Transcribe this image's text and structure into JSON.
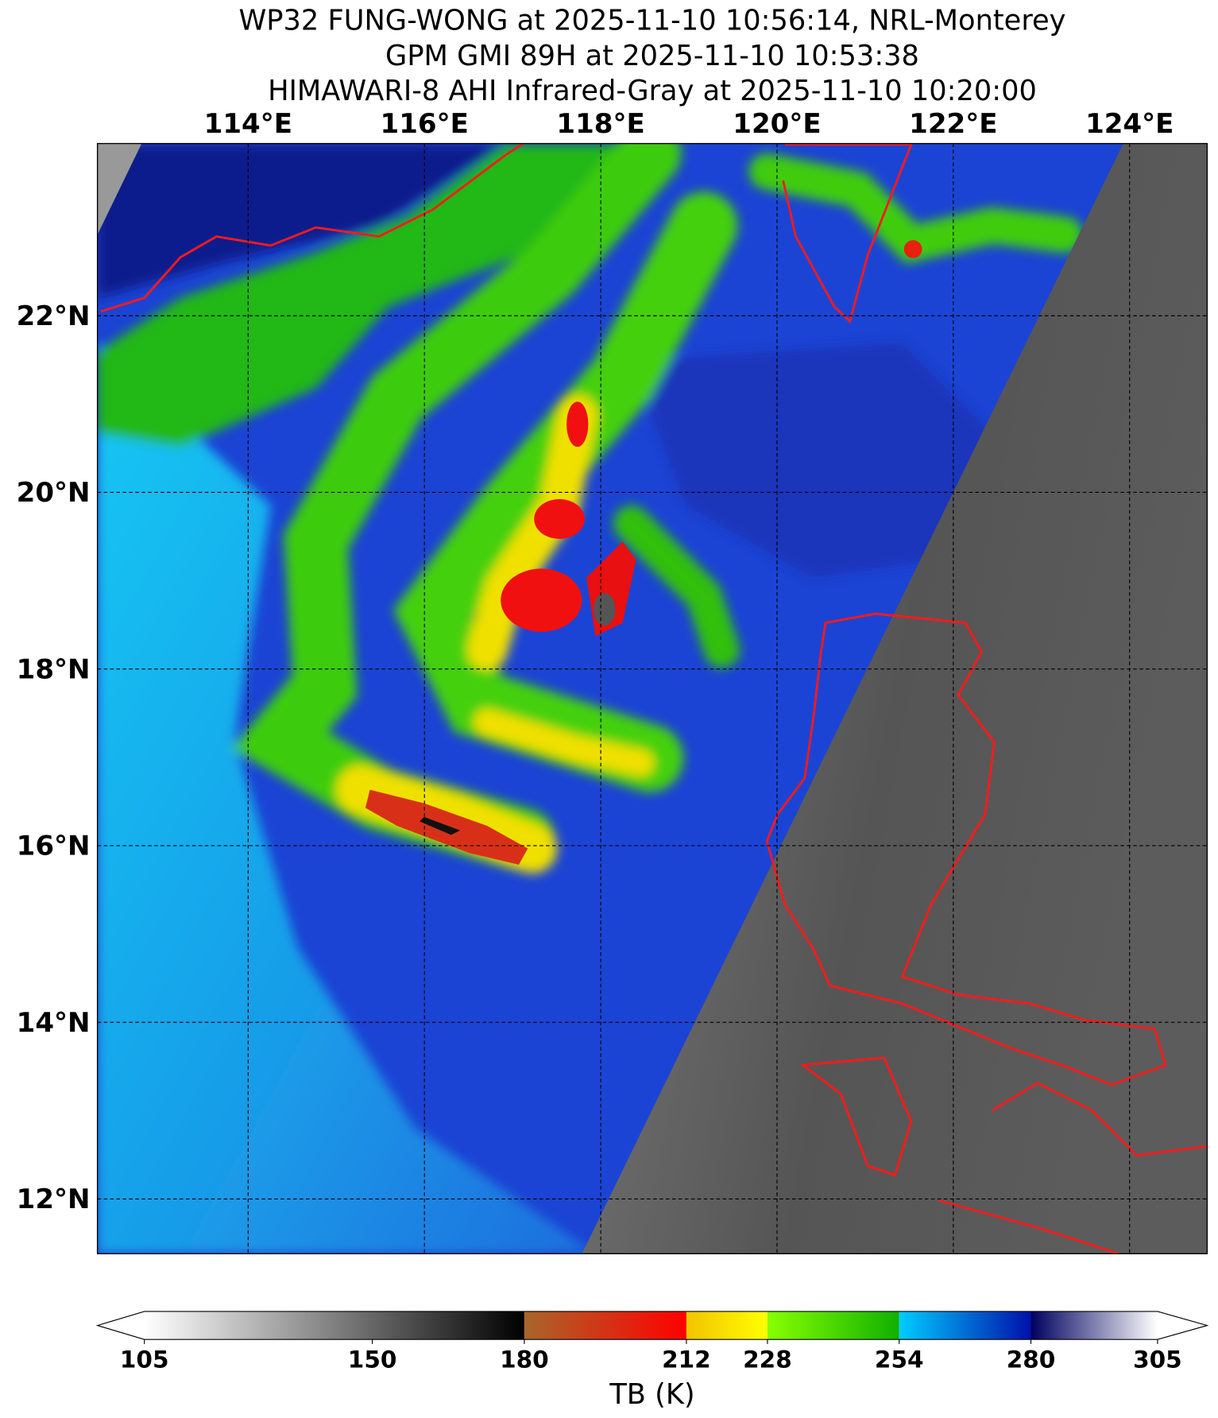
{
  "titles": [
    "WP32 FUNG-WONG at 2025-11-10 10:56:14, NRL-Monterey",
    "GPM GMI 89H at 2025-11-10 10:53:38",
    "HIMAWARI-8 AHI Infrared-Gray at 2025-11-10 10:20:00"
  ],
  "map": {
    "lon_extent": [
      112.29,
      124.88
    ],
    "lat_extent": [
      11.38,
      23.95
    ],
    "grid": true,
    "lon_ticks": [
      {
        "value": 114,
        "label": "114°E"
      },
      {
        "value": 116,
        "label": "116°E"
      },
      {
        "value": 118,
        "label": "118°E"
      },
      {
        "value": 120,
        "label": "120°E"
      },
      {
        "value": 122,
        "label": "122°E"
      },
      {
        "value": 124,
        "label": "124°E"
      }
    ],
    "lat_ticks": [
      {
        "value": 22,
        "label": "22°N"
      },
      {
        "value": 20,
        "label": "20°N"
      },
      {
        "value": 18,
        "label": "18°N"
      },
      {
        "value": 16,
        "label": "16°N"
      },
      {
        "value": 14,
        "label": "14°N"
      },
      {
        "value": 12,
        "label": "12°N"
      }
    ],
    "coastline_color": "#ff0000"
  },
  "colorbar": {
    "label": "TB (K)",
    "range": [
      105,
      305
    ],
    "extend": "both",
    "ticks": [
      105,
      150,
      180,
      212,
      228,
      254,
      280,
      305
    ],
    "tick_labels": [
      "105",
      "150",
      "180",
      "212",
      "228",
      "254",
      "280",
      "305"
    ],
    "segments": [
      {
        "from": 105,
        "to": 180,
        "colors": [
          "#ffffff",
          "#000000"
        ]
      },
      {
        "from": 180,
        "to": 212,
        "colors": [
          "#a8662a",
          "#ff0000"
        ]
      },
      {
        "from": 212,
        "to": 228,
        "colors": [
          "#f2c400",
          "#ffff00"
        ]
      },
      {
        "from": 228,
        "to": 254,
        "colors": [
          "#88ff00",
          "#10b000"
        ]
      },
      {
        "from": 254,
        "to": 280,
        "colors": [
          "#00ccff",
          "#0010aa"
        ]
      },
      {
        "from": 280,
        "to": 305,
        "colors": [
          "#000060",
          "#ffffff"
        ]
      }
    ]
  }
}
